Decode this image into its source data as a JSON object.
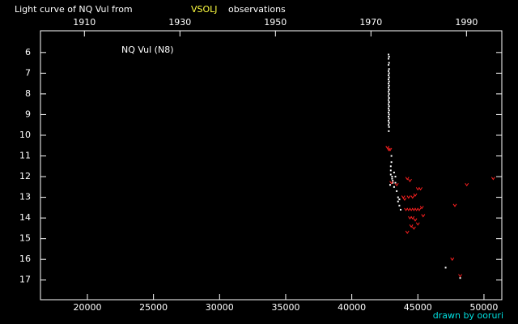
{
  "chart_data": {
    "type": "scatter",
    "title": "Light curve of NQ Vul from",
    "title_source": "VSOLJ",
    "title_suffix": "observations",
    "annotation": "NQ Vul (N8)",
    "credit": "drawn by ooruri",
    "xlim": [
      16450,
      51350
    ],
    "xticks": [
      20000,
      25000,
      30000,
      35000,
      40000,
      45000,
      50000
    ],
    "x2lim": [
      1900.8,
      1997.4
    ],
    "x2ticks": [
      1910,
      1930,
      1950,
      1970,
      1990
    ],
    "ylim": [
      4.95,
      17.95
    ],
    "y_inverted": true,
    "yticks": [
      6,
      7,
      8,
      9,
      10,
      11,
      12,
      13,
      14,
      15,
      16,
      17
    ],
    "series": [
      {
        "color": "#ffffff",
        "marker": "dot",
        "x": [
          42780,
          42820,
          42780,
          42820,
          42780,
          42820,
          42780,
          42820,
          42780,
          42820,
          42780,
          42820,
          42780,
          42820,
          42780,
          42820,
          42780,
          42820,
          42780,
          42820,
          42780,
          42820,
          42780,
          42820,
          42780,
          42820,
          42780,
          42820,
          42780,
          42820,
          42780,
          42820,
          42780,
          42820,
          42800,
          43000,
          43000,
          42950,
          42950,
          42950,
          43050,
          43050,
          43100,
          43100,
          42900,
          43200,
          43200,
          43300,
          43300,
          43400,
          43500,
          43500,
          43600,
          43600,
          43700,
          47100,
          48200
        ],
        "values": [
          6.1,
          6.2,
          6.3,
          6.5,
          6.6,
          6.8,
          6.9,
          7.0,
          7.1,
          7.2,
          7.3,
          7.4,
          7.5,
          7.6,
          7.7,
          7.8,
          7.9,
          8.0,
          8.1,
          8.2,
          8.3,
          8.4,
          8.5,
          8.6,
          8.7,
          8.8,
          8.9,
          9.0,
          9.1,
          9.2,
          9.3,
          9.4,
          9.5,
          9.6,
          9.8,
          11.0,
          11.3,
          11.5,
          11.7,
          11.9,
          12.0,
          12.1,
          12.2,
          12.3,
          12.4,
          11.8,
          12.5,
          12.0,
          12.3,
          12.7,
          13.0,
          13.2,
          13.4,
          13.1,
          13.6,
          16.4,
          16.9
        ]
      },
      {
        "color": "#ff2020",
        "marker": "v",
        "x": [
          42700,
          42900,
          42800,
          43000,
          43400,
          44200,
          44400,
          43900,
          44000,
          44300,
          44600,
          44800,
          45000,
          45200,
          44100,
          44300,
          44500,
          44700,
          44900,
          45100,
          45300,
          44400,
          44600,
          44800,
          45000,
          44500,
          44700,
          44200,
          47800,
          47600,
          48200,
          48700,
          50700,
          45400
        ],
        "values": [
          10.6,
          10.7,
          10.7,
          12.3,
          12.4,
          12.1,
          12.2,
          13.0,
          13.1,
          13.0,
          13.0,
          12.9,
          12.6,
          12.6,
          13.6,
          13.6,
          13.6,
          13.6,
          13.6,
          13.6,
          13.5,
          14.0,
          14.0,
          14.1,
          14.3,
          14.4,
          14.5,
          14.7,
          13.4,
          16.0,
          16.8,
          12.4,
          12.1,
          13.9
        ]
      }
    ]
  }
}
